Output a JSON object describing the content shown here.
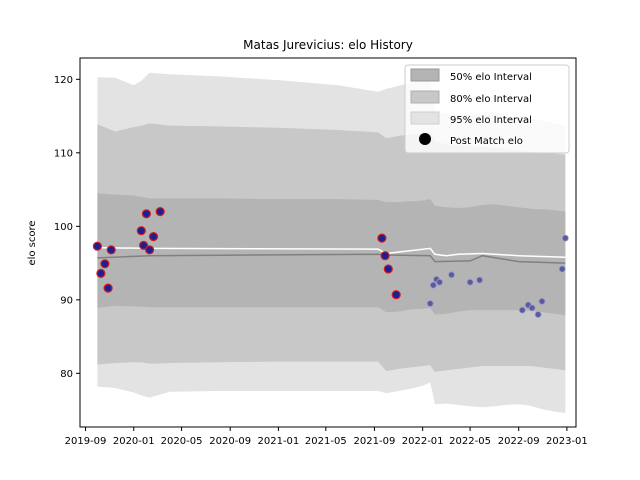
{
  "chart_data": {
    "type": "line",
    "title": "Matas Jurevicius: elo History",
    "xlabel": "",
    "ylabel": "elo score",
    "xlim": [
      "2019-08-18",
      "2023-01-24"
    ],
    "ylim": [
      72.7,
      122.9
    ],
    "x_ticks": [
      "2019-09",
      "2020-01",
      "2020-05",
      "2020-09",
      "2021-01",
      "2021-05",
      "2021-09",
      "2022-01",
      "2022-05",
      "2022-09",
      "2023-01"
    ],
    "y_ticks": [
      80,
      90,
      100,
      110,
      120
    ],
    "grid": false,
    "legend_position": "upper-right",
    "legend": {
      "band50": "50% elo Interval",
      "band80": "80% elo Interval",
      "band95": "95% elo Interval",
      "points": "Post Match elo"
    },
    "colors": {
      "band50": "#b4b4b4",
      "band80": "#c8c8c8",
      "band95": "#e3e3e3",
      "median_line": "#808080",
      "mean_line": "#ffffff",
      "point_fill_recent": "#5a5a9e",
      "point_fill_old": "#1e1e96",
      "point_edge": "#d21e1e"
    },
    "band_dates": [
      "2019-10-01",
      "2019-11-15",
      "2020-01-01",
      "2020-01-20",
      "2020-02-10",
      "2020-04-01",
      "2020-08-01",
      "2021-01-01",
      "2021-06-01",
      "2021-09-10",
      "2021-10-01",
      "2021-11-01",
      "2021-12-01",
      "2022-01-01",
      "2022-01-20",
      "2022-02-01",
      "2022-03-01",
      "2022-04-01",
      "2022-05-01",
      "2022-06-01",
      "2022-07-01",
      "2022-08-01",
      "2022-09-01",
      "2022-10-01",
      "2022-11-01",
      "2022-12-01",
      "2022-12-28"
    ],
    "bands": {
      "p95_upper": [
        120.3,
        120.2,
        119.2,
        119.8,
        120.9,
        120.7,
        120.4,
        119.9,
        119.2,
        118.3,
        118.7,
        119.1,
        119.5,
        119.9,
        120.3,
        115.5,
        115.4,
        115.3,
        115.2,
        115.4,
        115.6,
        115.2,
        114.8,
        114.6,
        114.4,
        114.0,
        113.7
      ],
      "p80_upper": [
        113.9,
        112.9,
        113.5,
        113.7,
        114.0,
        113.7,
        113.6,
        113.4,
        113.1,
        112.8,
        112.0,
        112.3,
        112.5,
        112.7,
        112.9,
        111.5,
        111.2,
        111.0,
        110.9,
        110.8,
        110.7,
        110.5,
        110.3,
        110.1,
        110.0,
        109.9,
        109.7
      ],
      "p50_upper": [
        104.5,
        104.3,
        104.2,
        104.0,
        103.8,
        103.8,
        103.8,
        103.7,
        103.7,
        103.6,
        103.3,
        103.3,
        103.4,
        103.5,
        103.7,
        102.8,
        102.6,
        102.5,
        102.6,
        102.9,
        103.0,
        102.8,
        102.6,
        102.4,
        102.3,
        102.2,
        102.0
      ],
      "p50_lower": [
        88.9,
        89.2,
        89.1,
        89.1,
        89.0,
        89.0,
        89.0,
        89.0,
        89.0,
        89.0,
        88.3,
        88.4,
        88.7,
        88.8,
        88.9,
        88.0,
        88.1,
        88.4,
        88.6,
        88.6,
        88.6,
        88.6,
        88.6,
        88.5,
        88.3,
        88.1,
        87.9
      ],
      "p80_lower": [
        81.2,
        81.4,
        81.5,
        81.5,
        81.3,
        81.4,
        81.5,
        81.6,
        81.6,
        81.6,
        80.3,
        80.6,
        80.8,
        81.0,
        81.1,
        80.2,
        80.4,
        80.6,
        80.8,
        81.0,
        81.0,
        81.0,
        81.0,
        81.0,
        80.8,
        80.6,
        80.4
      ],
      "p05_lower": [
        78.2,
        78.0,
        77.4,
        77.0,
        76.7,
        77.5,
        77.6,
        77.6,
        77.6,
        77.6,
        77.3,
        77.6,
        77.9,
        78.3,
        78.8,
        75.8,
        75.9,
        75.7,
        75.5,
        75.4,
        75.5,
        75.7,
        75.8,
        75.6,
        75.1,
        74.8,
        74.6
      ]
    },
    "median_line": {
      "x": [
        "2019-10-01",
        "2020-02-10",
        "2021-09-10",
        "2021-10-01",
        "2022-01-20",
        "2022-02-01",
        "2022-05-01",
        "2022-06-01",
        "2022-09-01",
        "2022-12-28"
      ],
      "y": [
        95.7,
        96.0,
        96.2,
        96.1,
        96.0,
        95.2,
        95.3,
        96.0,
        95.2,
        95.0
      ]
    },
    "mean_line": {
      "x": [
        "2019-10-01",
        "2020-02-10",
        "2021-09-10",
        "2021-10-01",
        "2022-01-20",
        "2022-02-01",
        "2022-03-01",
        "2022-04-01",
        "2022-06-01",
        "2022-09-01",
        "2022-12-28"
      ],
      "y": [
        97.1,
        97.0,
        96.9,
        96.3,
        97.0,
        96.2,
        96.0,
        96.2,
        96.3,
        96.0,
        95.8
      ]
    },
    "points": [
      {
        "date": "2019-10-01",
        "elo": 97.3
      },
      {
        "date": "2019-10-10",
        "elo": 93.6
      },
      {
        "date": "2019-10-20",
        "elo": 94.9
      },
      {
        "date": "2019-10-28",
        "elo": 91.6
      },
      {
        "date": "2019-11-05",
        "elo": 96.8
      },
      {
        "date": "2020-01-20",
        "elo": 99.4
      },
      {
        "date": "2020-01-26",
        "elo": 97.4
      },
      {
        "date": "2020-02-02",
        "elo": 101.7
      },
      {
        "date": "2020-02-10",
        "elo": 96.8
      },
      {
        "date": "2020-02-20",
        "elo": 98.6
      },
      {
        "date": "2020-03-08",
        "elo": 102.0
      },
      {
        "date": "2021-09-20",
        "elo": 98.4
      },
      {
        "date": "2021-09-28",
        "elo": 96.0
      },
      {
        "date": "2021-10-06",
        "elo": 94.2
      },
      {
        "date": "2021-10-26",
        "elo": 90.7
      },
      {
        "date": "2022-01-20",
        "elo": 89.5
      },
      {
        "date": "2022-01-28",
        "elo": 92.0
      },
      {
        "date": "2022-02-05",
        "elo": 92.8
      },
      {
        "date": "2022-02-13",
        "elo": 92.4
      },
      {
        "date": "2022-03-15",
        "elo": 93.4
      },
      {
        "date": "2022-05-01",
        "elo": 92.4
      },
      {
        "date": "2022-05-25",
        "elo": 92.7
      },
      {
        "date": "2022-09-10",
        "elo": 88.6
      },
      {
        "date": "2022-09-25",
        "elo": 89.3
      },
      {
        "date": "2022-10-05",
        "elo": 88.9
      },
      {
        "date": "2022-10-20",
        "elo": 88.0
      },
      {
        "date": "2022-10-30",
        "elo": 89.8
      },
      {
        "date": "2022-12-20",
        "elo": 94.2
      },
      {
        "date": "2022-12-28",
        "elo": 98.4
      }
    ]
  }
}
